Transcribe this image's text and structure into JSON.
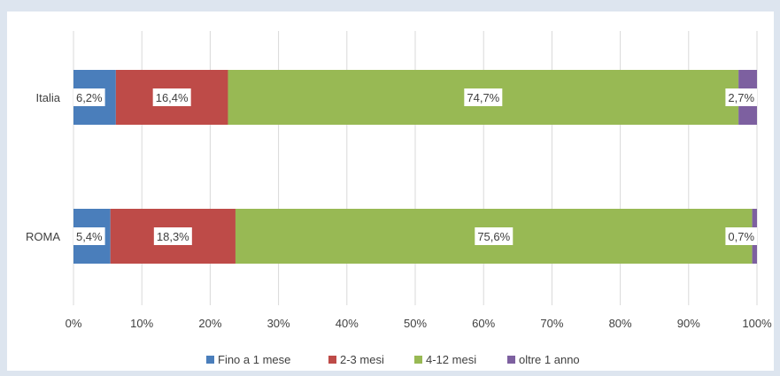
{
  "chart_data": {
    "type": "bar",
    "orientation": "horizontal",
    "stacked": "percent",
    "categories": [
      "Italia",
      "ROMA"
    ],
    "series": [
      {
        "name": "Fino a 1 mese",
        "color": "#4a7ebb",
        "values": [
          6.2,
          5.4
        ],
        "labels": [
          "6,2%",
          "5,4%"
        ]
      },
      {
        "name": "2-3 mesi",
        "color": "#be4b48",
        "values": [
          16.4,
          18.3
        ],
        "labels": [
          "16,4%",
          "18,3%"
        ]
      },
      {
        "name": "4-12 mesi",
        "color": "#98b954",
        "values": [
          74.7,
          75.6
        ],
        "labels": [
          "74,7%",
          "75,6%"
        ]
      },
      {
        "name": "oltre 1 anno",
        "color": "#7d60a0",
        "values": [
          2.7,
          0.7
        ],
        "labels": [
          "2,7%",
          "0,7%"
        ]
      }
    ],
    "x_ticks": [
      "0%",
      "10%",
      "20%",
      "30%",
      "40%",
      "50%",
      "60%",
      "70%",
      "80%",
      "90%",
      "100%"
    ],
    "xlim": [
      0,
      100
    ],
    "grid": true,
    "legend": "bottom"
  }
}
